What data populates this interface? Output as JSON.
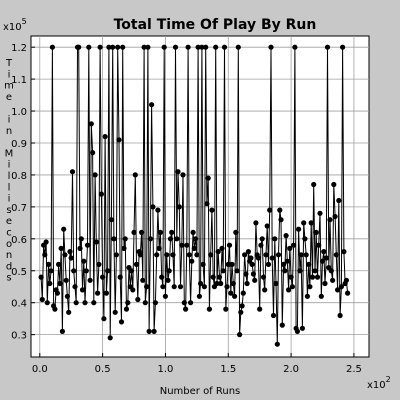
{
  "chart_data": {
    "type": "line",
    "title": "Total Time Of Play By Run",
    "xlabel": "Number of Runs",
    "ylabel": "Time in Milliseconds",
    "x_multiplier": "x10",
    "x_multiplier_exp": "2",
    "y_multiplier": "x10",
    "y_multiplier_exp": "5",
    "xlim": [
      -0.07,
      2.62
    ],
    "ylim": [
      0.23,
      1.235
    ],
    "x_ticks": [
      0.0,
      0.5,
      1.0,
      1.5,
      2.0,
      2.5
    ],
    "x_tick_labels": [
      "0.0",
      "0.5",
      "1.0",
      "1.5",
      "2.0",
      "2.5"
    ],
    "y_ticks": [
      0.3,
      0.4,
      0.5,
      0.6,
      0.7,
      0.8,
      0.9,
      1.0,
      1.1,
      1.2
    ],
    "y_tick_labels": [
      "0.3",
      "0.4",
      "0.5",
      "0.6",
      "0.7",
      "0.8",
      "0.9",
      "1.0",
      "1.1",
      "1.2"
    ],
    "grid": true,
    "legend": "none",
    "series": [
      {
        "values": [
          0.48,
          0.41,
          0.58,
          0.55,
          0.59,
          0.4,
          0.52,
          0.46,
          0.5,
          1.2,
          0.39,
          0.38,
          0.44,
          0.43,
          0.52,
          0.46,
          0.57,
          0.31,
          0.63,
          0.55,
          0.47,
          0.42,
          0.37,
          0.56,
          0.54,
          0.81,
          0.5,
          0.45,
          0.4,
          1.2,
          1.2,
          0.57,
          0.6,
          0.44,
          0.53,
          0.4,
          0.5,
          0.58,
          1.2,
          0.47,
          0.96,
          0.87,
          0.4,
          0.8,
          0.59,
          0.43,
          0.52,
          1.2,
          0.74,
          0.48,
          0.35,
          0.92,
          0.43,
          0.5,
          1.2,
          0.29,
          0.66,
          1.2,
          0.6,
          0.37,
          0.55,
          1.2,
          0.91,
          0.48,
          0.34,
          1.2,
          0.57,
          0.6,
          0.38,
          0.4,
          0.51,
          0.45,
          0.5,
          0.44,
          0.62,
          0.8,
          0.52,
          0.41,
          0.56,
          0.55,
          0.62,
          0.47,
          1.2,
          0.4,
          0.45,
          1.2,
          0.31,
          0.6,
          1.02,
          0.7,
          0.31,
          0.4,
          0.55,
          0.69,
          0.57,
          0.62,
          0.48,
          0.45,
          1.2,
          0.42,
          0.55,
          0.47,
          0.5,
          0.6,
          0.62,
          0.55,
          0.45,
          1.2,
          0.6,
          0.81,
          0.7,
          0.45,
          0.58,
          0.8,
          0.4,
          0.38,
          0.58,
          1.2,
          0.55,
          0.4,
          0.53,
          0.62,
          0.57,
          0.6,
          0.55,
          1.2,
          0.42,
          0.46,
          1.2,
          0.52,
          0.45,
          1.2,
          0.71,
          0.79,
          0.38,
          0.55,
          0.69,
          0.48,
          0.45,
          1.2,
          0.46,
          0.56,
          0.48,
          0.46,
          0.57,
          0.5,
          1.2,
          0.38,
          0.45,
          0.52,
          0.58,
          0.43,
          0.52,
          0.46,
          0.42,
          0.62,
          0.5,
          1.2,
          0.3,
          0.37,
          0.39,
          0.43,
          0.55,
          0.49,
          0.46,
          0.56,
          0.53,
          0.54,
          0.52,
          0.49,
          0.47,
          0.65,
          0.55,
          0.54,
          0.38,
          0.58,
          0.6,
          0.48,
          0.44,
          0.55,
          0.64,
          0.52,
          0.69,
          1.2,
          0.54,
          0.36,
          0.6,
          0.46,
          0.27,
          0.55,
          0.69,
          0.66,
          0.33,
          0.52,
          0.5,
          0.61,
          0.53,
          0.44,
          0.57,
          0.48,
          0.45,
          0.58,
          1.2,
          0.32,
          0.31,
          0.63,
          0.5,
          0.55,
          0.32,
          0.65,
          0.6,
          0.55,
          0.42,
          0.52,
          0.45,
          0.65,
          0.48,
          0.77,
          0.5,
          0.62,
          0.48,
          0.58,
          0.68,
          0.42,
          0.53,
          0.56,
          0.46,
          0.54,
          1.2,
          0.51,
          0.66,
          0.5,
          0.47,
          0.77,
          0.67,
          0.55,
          0.44,
          0.72,
          0.36,
          0.45,
          1.2,
          0.56,
          0.46,
          0.47,
          0.43
        ]
      }
    ]
  },
  "colors": {
    "background": "#c8c8c8",
    "plot_area": "#ffffff",
    "grid": "#a0a0a0",
    "line": "#000000",
    "marker": "#000000"
  }
}
